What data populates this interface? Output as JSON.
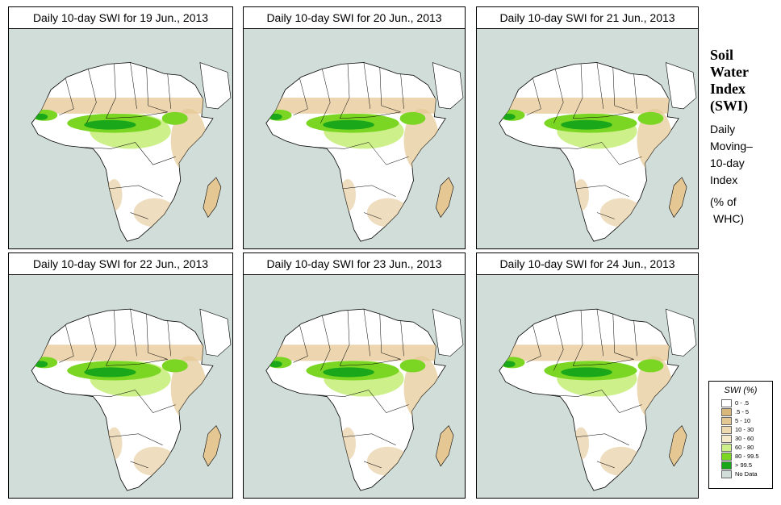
{
  "panels": [
    {
      "title": "Daily 10-day SWI for  19 Jun., 2013"
    },
    {
      "title": "Daily 10-day SWI for  20 Jun., 2013"
    },
    {
      "title": "Daily 10-day SWI for  21 Jun., 2013"
    },
    {
      "title": "Daily 10-day SWI for  22 Jun., 2013"
    },
    {
      "title": "Daily 10-day SWI for  23 Jun., 2013"
    },
    {
      "title": "Daily 10-day SWI for  24 Jun., 2013"
    }
  ],
  "side": {
    "title_lines": [
      "Soil",
      "Water",
      "Index",
      "(SWI)"
    ],
    "sub_lines": [
      "Daily",
      "Moving–",
      "10-day",
      "Index"
    ],
    "unit_lines": [
      "(% of",
      "WHC)"
    ]
  },
  "legend": {
    "title": "SWI (%)",
    "items": [
      {
        "label": "0 - .5",
        "color": "#ffffff"
      },
      {
        "label": ".5 - 5",
        "color": "#d9b67a"
      },
      {
        "label": "5 - 10",
        "color": "#e5c794"
      },
      {
        "label": "10 - 30",
        "color": "#eed9b0"
      },
      {
        "label": "30 - 60",
        "color": "#f5ebcb"
      },
      {
        "label": "60 - 80",
        "color": "#cdf08a"
      },
      {
        "label": "80 - 99.5",
        "color": "#7bd624"
      },
      {
        "label": "> 99.5",
        "color": "#1aa81a"
      },
      {
        "label": "No Data",
        "color": "#d1ddd9"
      }
    ]
  },
  "colors": {
    "ocean": "#d1ddd9",
    "land": "#ffffff",
    "tan": "#e5c794",
    "wet": "#7bd624",
    "saturated": "#1aa81a",
    "moist": "#cdf08a"
  }
}
